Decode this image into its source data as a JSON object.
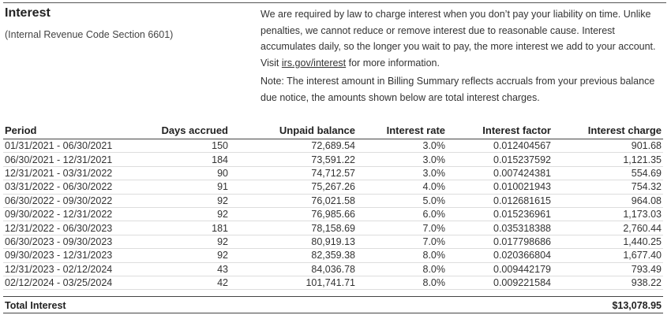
{
  "header": {
    "title": "Interest",
    "subtitle": "(Internal Revenue Code Section 6601)"
  },
  "explanation": {
    "text_before": "We are required by law to charge interest when you don’t pay your liability on time. Unlike penalties, we cannot reduce or remove interest due to reasonable cause. Interest accumulates daily, so the longer you wait to pay, the more interest we add to your account. Visit ",
    "link": "irs.gov/interest",
    "text_after": " for more information."
  },
  "note": "Note: The interest amount in Billing Summary reflects accruals from your previous balance due notice, the amounts shown below are total interest charges.",
  "table": {
    "columns": [
      "Period",
      "Days accrued",
      "Unpaid balance",
      "Interest rate",
      "Interest factor",
      "Interest charge"
    ],
    "rows": [
      [
        "01/31/2021 - 06/30/2021",
        "150",
        "72,689.54",
        "3.0%",
        "0.012404567",
        "901.68"
      ],
      [
        "06/30/2021 - 12/31/2021",
        "184",
        "73,591.22",
        "3.0%",
        "0.015237592",
        "1,121.35"
      ],
      [
        "12/31/2021 - 03/31/2022",
        "90",
        "74,712.57",
        "3.0%",
        "0.007424381",
        "554.69"
      ],
      [
        "03/31/2022 - 06/30/2022",
        "91",
        "75,267.26",
        "4.0%",
        "0.010021943",
        "754.32"
      ],
      [
        "06/30/2022 - 09/30/2022",
        "92",
        "76,021.58",
        "5.0%",
        "0.012681615",
        "964.08"
      ],
      [
        "09/30/2022 - 12/31/2022",
        "92",
        "76,985.66",
        "6.0%",
        "0.015236961",
        "1,173.03"
      ],
      [
        "12/31/2022 - 06/30/2023",
        "181",
        "78,158.69",
        "7.0%",
        "0.035318388",
        "2,760.44"
      ],
      [
        "06/30/2023 - 09/30/2023",
        "92",
        "80,919.13",
        "7.0%",
        "0.017798686",
        "1,440.25"
      ],
      [
        "09/30/2023 - 12/31/2023",
        "92",
        "82,359.38",
        "8.0%",
        "0.020366804",
        "1,677.40"
      ],
      [
        "12/31/2023 - 02/12/2024",
        "43",
        "84,036.78",
        "8.0%",
        "0.009442179",
        "793.49"
      ],
      [
        "02/12/2024 - 03/25/2024",
        "42",
        "101,741.71",
        "8.0%",
        "0.009221584",
        "938.22"
      ]
    ],
    "total_label": "Total Interest",
    "total_value": "$13,078.95"
  }
}
